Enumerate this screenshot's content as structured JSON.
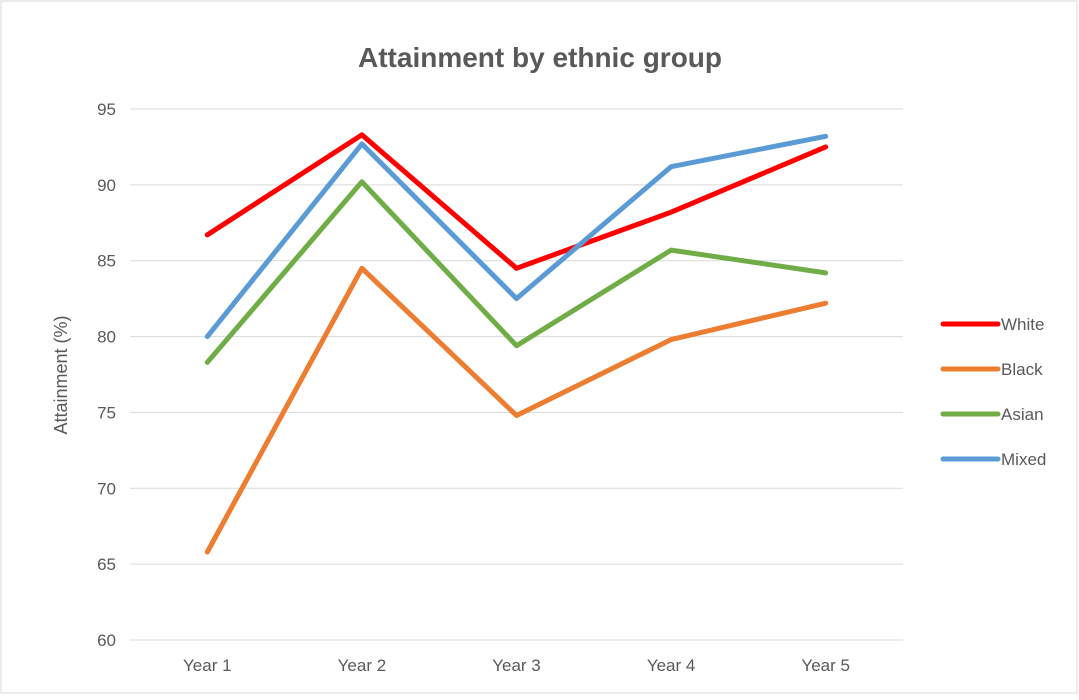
{
  "chart_data": {
    "type": "line",
    "title": "Attainment by ethnic group",
    "xlabel": "",
    "ylabel": "Attainment (%)",
    "categories": [
      "Year 1",
      "Year 2",
      "Year 3",
      "Year 4",
      "Year 5"
    ],
    "ylim": [
      60,
      95
    ],
    "yticks": [
      "60",
      "65",
      "70",
      "75",
      "80",
      "85",
      "90",
      "95"
    ],
    "grid": "horizontal",
    "legend": "right",
    "series": [
      {
        "name": "White",
        "color": "#ff0000",
        "values": [
          86.7,
          93.3,
          84.5,
          88.2,
          92.5
        ]
      },
      {
        "name": "Black",
        "color": "#ed7d31",
        "values": [
          65.8,
          84.5,
          74.8,
          79.8,
          82.2
        ]
      },
      {
        "name": "Asian",
        "color": "#70ad47",
        "values": [
          78.3,
          90.2,
          79.4,
          85.7,
          84.2
        ]
      },
      {
        "name": "Mixed",
        "color": "#5b9bd5",
        "values": [
          80.0,
          92.7,
          82.5,
          91.2,
          93.2
        ]
      }
    ]
  }
}
